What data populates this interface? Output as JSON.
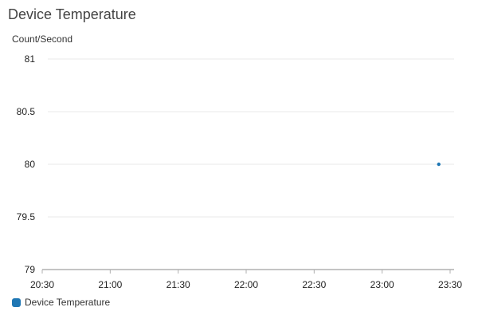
{
  "widget": {
    "title": "Device Temperature",
    "unit_label": "Count/Second"
  },
  "colors": {
    "series": "#1f77b4",
    "grid": "#e8e8e8",
    "axis": "#b0b0b0"
  },
  "chart_data": {
    "type": "scatter",
    "title": "Device Temperature",
    "xlabel": "",
    "ylabel": "Count/Second",
    "x_ticks": [
      "20:30",
      "21:00",
      "21:30",
      "22:00",
      "22:30",
      "23:00",
      "23:30"
    ],
    "xlim": [
      "20:30",
      "23:30"
    ],
    "y_ticks": [
      "81",
      "80.5",
      "80",
      "79.5",
      "79"
    ],
    "ylim": [
      79,
      81
    ],
    "grid": true,
    "legend_position": "bottom-left",
    "series": [
      {
        "name": "Device Temperature",
        "points": [
          {
            "x": "23:25",
            "y": 80
          }
        ]
      }
    ]
  }
}
